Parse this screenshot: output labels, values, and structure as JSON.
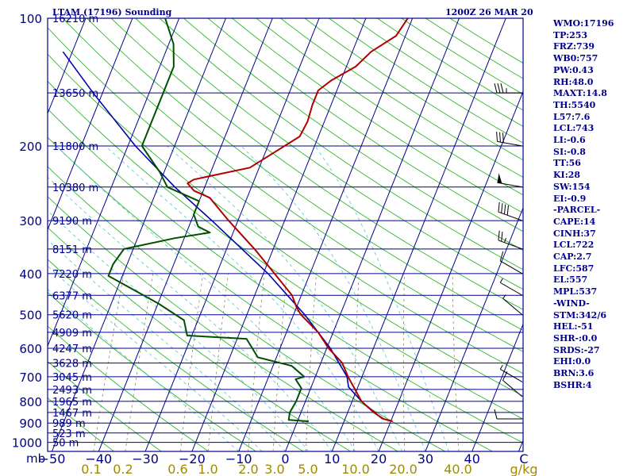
{
  "header": {
    "station": "LTAM (17196) Sounding",
    "time": "1200Z 26 MAR 20"
  },
  "indices": [
    "WMO:17196",
    "TP:253",
    "FRZ:739",
    "WB0:757",
    "PW:0.43",
    "RH:48.0",
    "MAXT:14.8",
    "TH:5540",
    "L57:7.6",
    "LCL:743",
    "LI:-0.6",
    "SI:-0.8",
    "TT:56",
    "KI:28",
    "SW:154",
    "EI:-0.9",
    "-PARCEL-",
    "CAPE:14",
    "CINH:37",
    "LCL:722",
    "CAP:2.7",
    "LFC:587",
    "EL:557",
    "MPL:537",
    "-WIND-",
    "STM:342/6",
    "HEL:-51",
    "SHR-:0.0",
    "SRDS:-27",
    "EHI:0.0",
    "BRN:3.6",
    "BSHR:4"
  ],
  "colors": {
    "background": "#ffffff",
    "isobar": "#00008b",
    "isotherm": "#00008b",
    "dry_adiabat": "#2db82d",
    "moist_adiabat": "#66cccc",
    "mixing_ratio": "#8c8c5a",
    "temperature": "#b00000",
    "dewpoint": "#005000",
    "parcel": "#0000b0",
    "text_blue": "#00008b",
    "text_olive": "#a08a00"
  },
  "chart_data": {
    "type": "skew-t",
    "pressure_axis": {
      "unit": "mb",
      "ticks": [
        100,
        200,
        300,
        400,
        500,
        600,
        700,
        800,
        900,
        1000
      ],
      "range": [
        1000,
        100
      ],
      "scale": "log"
    },
    "temperature_axis": {
      "unit": "C",
      "ticks": [
        -50,
        -40,
        -30,
        -20,
        -10,
        0,
        10,
        20,
        30,
        40
      ],
      "tick_labels": [
        "−50",
        "−40",
        "−30",
        "−20",
        "−10",
        "0",
        "10",
        "20",
        "30",
        "40",
        "C"
      ]
    },
    "mixing_ratio_axis": {
      "unit": "g/kg",
      "ticks": [
        0.1,
        0.2,
        0.6,
        1.0,
        2.0,
        3.0,
        5.0,
        10.0,
        20.0,
        40.0
      ],
      "tick_labels": [
        "0.1",
        "0.2",
        "0.6",
        "1.0",
        "2.0",
        "3.0",
        "5.0",
        "10.0",
        "20.0",
        "40.0",
        "g/kg"
      ]
    },
    "height_labels": [
      {
        "p": 100,
        "label": "16210 m"
      },
      {
        "p": 150,
        "label": "13650 m"
      },
      {
        "p": 200,
        "label": "11800 m"
      },
      {
        "p": 250,
        "label": "10380 m"
      },
      {
        "p": 300,
        "label": "9190 m"
      },
      {
        "p": 350,
        "label": "8151 m"
      },
      {
        "p": 400,
        "label": "7220 m"
      },
      {
        "p": 450,
        "label": "6377 m"
      },
      {
        "p": 500,
        "label": "5620 m"
      },
      {
        "p": 550,
        "label": "4909 m"
      },
      {
        "p": 600,
        "label": "4247 m"
      },
      {
        "p": 650,
        "label": "3628 m"
      },
      {
        "p": 700,
        "label": "3045 m"
      },
      {
        "p": 750,
        "label": "2493 m"
      },
      {
        "p": 800,
        "label": "1965 m"
      },
      {
        "p": 850,
        "label": "1467 m"
      },
      {
        "p": 900,
        "label": "989 m"
      },
      {
        "p": 950,
        "label": "523 m"
      },
      {
        "p": 1000,
        "label": "50 m"
      }
    ],
    "temperature": [
      [
        892,
        20.4
      ],
      [
        880,
        18.2
      ],
      [
        850,
        15.6
      ],
      [
        800,
        12.0
      ],
      [
        750,
        9.6
      ],
      [
        700,
        7.0
      ],
      [
        650,
        4.6
      ],
      [
        600,
        0.4
      ],
      [
        550,
        -3.2
      ],
      [
        500,
        -8.4
      ],
      [
        480,
        -10.0
      ],
      [
        450,
        -12.0
      ],
      [
        400,
        -17.6
      ],
      [
        350,
        -24.0
      ],
      [
        300,
        -32.0
      ],
      [
        265,
        -38.0
      ],
      [
        255,
        -42.0
      ],
      [
        245,
        -44.0
      ],
      [
        240,
        -43.0
      ],
      [
        225,
        -32.0
      ],
      [
        205,
        -27.6
      ],
      [
        190,
        -24.0
      ],
      [
        175,
        -23.6
      ],
      [
        160,
        -24.0
      ],
      [
        148,
        -24.0
      ],
      [
        140,
        -22.0
      ],
      [
        130,
        -18.0
      ],
      [
        120,
        -16.0
      ],
      [
        110,
        -12.0
      ],
      [
        100,
        -11.0
      ]
    ],
    "dewpoint": [
      [
        892,
        2.4
      ],
      [
        885,
        -2.0
      ],
      [
        850,
        -2.4
      ],
      [
        800,
        -2.0
      ],
      [
        745,
        -2.0
      ],
      [
        710,
        -4.0
      ],
      [
        700,
        -2.4
      ],
      [
        660,
        -6.0
      ],
      [
        630,
        -14.0
      ],
      [
        570,
        -18.0
      ],
      [
        560,
        -31.0
      ],
      [
        515,
        -33.0
      ],
      [
        470,
        -40.0
      ],
      [
        405,
        -53.0
      ],
      [
        380,
        -53.0
      ],
      [
        350,
        -52.0
      ],
      [
        330,
        -42.0
      ],
      [
        320,
        -35.0
      ],
      [
        310,
        -38.0
      ],
      [
        290,
        -40.0
      ],
      [
        270,
        -40.0
      ],
      [
        250,
        -48.0
      ],
      [
        230,
        -51.0
      ],
      [
        200,
        -57.0
      ],
      [
        180,
        -57.0
      ],
      [
        150,
        -57.0
      ],
      [
        130,
        -57.0
      ],
      [
        115,
        -59.0
      ],
      [
        100,
        -63.0
      ]
    ],
    "parcel": [
      [
        880,
        18.0
      ],
      [
        800,
        12.0
      ],
      [
        740,
        8.0
      ],
      [
        700,
        6.8
      ],
      [
        600,
        0.8
      ],
      [
        500,
        -7.6
      ],
      [
        400,
        -19.0
      ],
      [
        300,
        -35.6
      ],
      [
        250,
        -46.4
      ],
      [
        200,
        -58.4
      ],
      [
        150,
        -72.0
      ],
      [
        120,
        -82.0
      ]
    ],
    "winds": [
      {
        "p": 880,
        "dir": 270,
        "spd": 10
      },
      {
        "p": 780,
        "dir": 310,
        "spd": 10
      },
      {
        "p": 720,
        "dir": 300,
        "spd": 5
      },
      {
        "p": 500,
        "dir": 310,
        "spd": 5
      },
      {
        "p": 450,
        "dir": 300,
        "spd": 5
      },
      {
        "p": 400,
        "dir": 300,
        "spd": 10
      },
      {
        "p": 350,
        "dir": 290,
        "spd": 25
      },
      {
        "p": 300,
        "dir": 290,
        "spd": 40
      },
      {
        "p": 250,
        "dir": 280,
        "spd": 50
      },
      {
        "p": 200,
        "dir": 280,
        "spd": 30
      },
      {
        "p": 150,
        "dir": 270,
        "spd": 35
      }
    ]
  }
}
